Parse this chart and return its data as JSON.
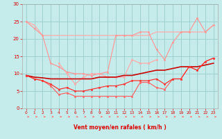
{
  "title": "",
  "xlabel": "Vent moyen/en rafales ( km/h )",
  "ylabel": "",
  "bg_color": "#c5eceb",
  "grid_color": "#99cccc",
  "x": [
    0,
    1,
    2,
    3,
    4,
    5,
    6,
    7,
    8,
    9,
    10,
    11,
    12,
    13,
    14,
    15,
    16,
    17,
    18,
    19,
    20,
    21,
    22,
    23
  ],
  "series": [
    {
      "y": [
        25,
        24,
        21,
        21,
        21,
        21,
        21,
        21,
        21,
        21,
        21,
        21,
        21,
        21,
        21,
        21,
        22,
        22,
        22,
        22,
        22,
        22,
        22,
        24
      ],
      "color": "#ffaaaa",
      "lw": 0.9,
      "marker": null
    },
    {
      "y": [
        25,
        23,
        21,
        13,
        12,
        10.5,
        10,
        10,
        9.5,
        10,
        10.5,
        21,
        21,
        21,
        22,
        22,
        17,
        14,
        19,
        22,
        22,
        26,
        22,
        24
      ],
      "color": "#ff9999",
      "lw": 0.9,
      "marker": "o",
      "ms": 1.8
    },
    {
      "y": [
        null,
        null,
        null,
        null,
        13,
        10,
        7,
        9,
        10,
        10,
        9,
        9,
        9,
        14,
        13,
        13,
        14,
        null,
        null,
        null,
        null,
        null,
        null,
        null
      ],
      "color": "#ffaaaa",
      "lw": 0.9,
      "marker": "o",
      "ms": 1.8
    },
    {
      "y": [
        9.5,
        8.5,
        8,
        6.5,
        4,
        4.5,
        3.5,
        3.5,
        3.5,
        3.5,
        3.5,
        3.5,
        3.5,
        3.5,
        7.5,
        7.5,
        6,
        5.5,
        8.5,
        8.5,
        12,
        11,
        13.5,
        14.5
      ],
      "color": "#ff6666",
      "lw": 0.9,
      "marker": "o",
      "ms": 1.8
    },
    {
      "y": [
        9.5,
        9,
        8.8,
        8.5,
        8.5,
        8.5,
        8.5,
        8.5,
        8.5,
        9,
        9,
        9,
        9.5,
        9.5,
        10,
        10.5,
        11,
        11,
        11.5,
        12,
        12,
        12,
        12.5,
        13
      ],
      "color": "#cc0000",
      "lw": 1.2,
      "marker": null
    },
    {
      "y": [
        9.5,
        8.5,
        8,
        7,
        5.5,
        6,
        5,
        5,
        5.5,
        6,
        6.5,
        6.5,
        7,
        8,
        8,
        8,
        8.5,
        7,
        8.5,
        8.5,
        12,
        11,
        13.5,
        14.5
      ],
      "color": "#ff3333",
      "lw": 0.9,
      "marker": "o",
      "ms": 1.8
    }
  ],
  "ylim": [
    0,
    30
  ],
  "xlim": [
    -0.5,
    23.5
  ],
  "yticks": [
    0,
    5,
    10,
    15,
    20,
    25,
    30
  ],
  "xticks": [
    0,
    1,
    2,
    3,
    4,
    5,
    6,
    7,
    8,
    9,
    10,
    11,
    12,
    13,
    14,
    15,
    16,
    17,
    18,
    19,
    20,
    21,
    22,
    23
  ],
  "tick_color": "#dd0000",
  "label_color": "#dd0000"
}
